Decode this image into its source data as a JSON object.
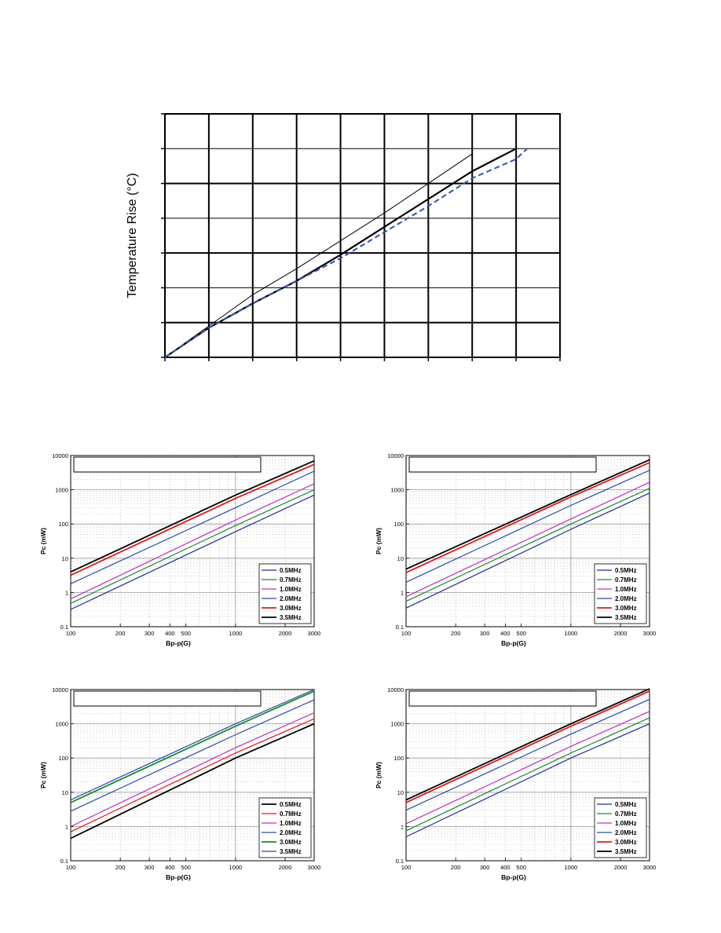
{
  "temperature_chart": {
    "ylabel": "Temperature Rise (°C)"
  },
  "chart_data": [
    {
      "type": "line",
      "title": "",
      "xlabel": "",
      "ylabel": "Temperature Rise (°C)",
      "x_divisions": 9,
      "y_divisions": 7,
      "grid": true,
      "series": [
        {
          "values": [
            [
              0,
              0
            ],
            [
              1,
              0.9
            ],
            [
              2,
              1.8
            ],
            [
              3,
              2.55
            ],
            [
              4,
              3.35
            ],
            [
              5,
              4.15
            ],
            [
              6,
              5.0
            ],
            [
              7,
              5.85
            ]
          ],
          "style": "thin"
        },
        {
          "values": [
            [
              0,
              0
            ],
            [
              1,
              0.85
            ],
            [
              2,
              1.55
            ],
            [
              3,
              2.2
            ],
            [
              4,
              2.95
            ],
            [
              5,
              3.75
            ],
            [
              6,
              4.55
            ],
            [
              7,
              5.35
            ],
            [
              8,
              6.0
            ]
          ],
          "style": "thick"
        },
        {
          "values": [
            [
              0,
              0
            ],
            [
              1,
              0.85
            ],
            [
              2,
              1.55
            ],
            [
              3,
              2.2
            ],
            [
              4,
              2.85
            ],
            [
              5,
              3.6
            ],
            [
              6,
              4.35
            ],
            [
              7,
              5.15
            ],
            [
              8,
              5.7
            ],
            [
              8.25,
              6.0
            ]
          ],
          "style": "dashed"
        }
      ]
    },
    {
      "type": "line",
      "title": "",
      "xlabel": "Bp-p(G)",
      "ylabel": "Pc (mW)",
      "x_scale": "log",
      "y_scale": "log",
      "xlim": [
        100,
        3000
      ],
      "ylim": [
        0.1,
        10000
      ],
      "x_ticks": [
        "100",
        "200",
        "300",
        "400",
        "500",
        "1000",
        "2000",
        "3000"
      ],
      "y_ticks": [
        "0.1",
        "1",
        "10",
        "100",
        "1000",
        "10000"
      ],
      "legend_position": "bottom-right",
      "series": [
        {
          "name": "0.5MHz",
          "values": [
            [
              100,
              0.32
            ],
            [
              1000,
              60
            ],
            [
              3000,
              700
            ]
          ]
        },
        {
          "name": "0.7MHz",
          "values": [
            [
              100,
              0.48
            ],
            [
              1000,
              90
            ],
            [
              3000,
              1000
            ]
          ]
        },
        {
          "name": "1.0MHz",
          "values": [
            [
              100,
              0.65
            ],
            [
              1000,
              130
            ],
            [
              3000,
              1500
            ]
          ]
        },
        {
          "name": "2.0MHz",
          "values": [
            [
              100,
              1.8
            ],
            [
              1000,
              300
            ],
            [
              3000,
              3500
            ]
          ]
        },
        {
          "name": "3.0MHz",
          "values": [
            [
              100,
              3.2
            ],
            [
              1000,
              560
            ],
            [
              3000,
              5500
            ]
          ]
        },
        {
          "name": "3.5MHz",
          "values": [
            [
              100,
              4.0
            ],
            [
              1000,
              700
            ],
            [
              3000,
              7000
            ]
          ]
        }
      ]
    },
    {
      "type": "line",
      "title": "",
      "xlabel": "Bp-p(G)",
      "ylabel": "Pc (mW)",
      "x_scale": "log",
      "y_scale": "log",
      "xlim": [
        100,
        3000
      ],
      "ylim": [
        0.1,
        10000
      ],
      "x_ticks": [
        "100",
        "200",
        "300",
        "400",
        "500",
        "1000",
        "2000",
        "3000"
      ],
      "y_ticks": [
        "0.1",
        "1",
        "10",
        "100",
        "1000",
        "10000"
      ],
      "legend_position": "bottom-right",
      "series": [
        {
          "name": "0.5MHz",
          "values": [
            [
              100,
              0.35
            ],
            [
              1000,
              70
            ],
            [
              3000,
              800
            ]
          ]
        },
        {
          "name": "0.7MHz",
          "values": [
            [
              100,
              0.55
            ],
            [
              1000,
              100
            ],
            [
              3000,
              1100
            ]
          ]
        },
        {
          "name": "1.0MHz",
          "values": [
            [
              100,
              0.75
            ],
            [
              1000,
              140
            ],
            [
              3000,
              1650
            ]
          ]
        },
        {
          "name": "2.0MHz",
          "values": [
            [
              100,
              2.0
            ],
            [
              1000,
              350
            ],
            [
              3000,
              3700
            ]
          ]
        },
        {
          "name": "3.0MHz",
          "values": [
            [
              100,
              3.8
            ],
            [
              1000,
              620
            ],
            [
              3000,
              6200
            ]
          ]
        },
        {
          "name": "3.5MHz",
          "values": [
            [
              100,
              4.8
            ],
            [
              1000,
              720
            ],
            [
              3000,
              7500
            ]
          ]
        }
      ]
    },
    {
      "type": "line",
      "title": "",
      "xlabel": "Bp-p(G)",
      "ylabel": "Pc (mW)",
      "x_scale": "log",
      "y_scale": "log",
      "xlim": [
        100,
        3000
      ],
      "ylim": [
        0.1,
        10000
      ],
      "x_ticks": [
        "100",
        "200",
        "300",
        "400",
        "500",
        "1000",
        "2000",
        "3000"
      ],
      "y_ticks": [
        "0.1",
        "1",
        "10",
        "100",
        "1000",
        "10000"
      ],
      "legend_position": "bottom-right",
      "series": [
        {
          "name": "0.5MHz",
          "values": [
            [
              100,
              0.45
            ],
            [
              1000,
              100
            ],
            [
              3000,
              1000
            ]
          ]
        },
        {
          "name": "0.7MHz",
          "values": [
            [
              100,
              0.7
            ],
            [
              1000,
              140
            ],
            [
              3000,
              1400
            ]
          ]
        },
        {
          "name": "1.0MHz",
          "values": [
            [
              100,
              1.0
            ],
            [
              1000,
              200
            ],
            [
              3000,
              2100
            ]
          ]
        },
        {
          "name": "2.0MHz",
          "values": [
            [
              100,
              2.8
            ],
            [
              1000,
              480
            ],
            [
              3000,
              5000
            ]
          ]
        },
        {
          "name": "3.0MHz",
          "values": [
            [
              100,
              5.0
            ],
            [
              1000,
              850
            ],
            [
              3000,
              9000
            ]
          ]
        },
        {
          "name": "3.5MHz",
          "values": [
            [
              100,
              6.0
            ],
            [
              1000,
              1000
            ],
            [
              3000,
              10000
            ]
          ]
        }
      ]
    },
    {
      "type": "line",
      "title": "",
      "xlabel": "Bp-p(G)",
      "ylabel": "Pc (mW)",
      "x_scale": "log",
      "y_scale": "log",
      "xlim": [
        100,
        3000
      ],
      "ylim": [
        0.1,
        10000
      ],
      "x_ticks": [
        "100",
        "200",
        "300",
        "400",
        "500",
        "1000",
        "2000",
        "3000"
      ],
      "y_ticks": [
        "0.1",
        "1",
        "10",
        "100",
        "1000",
        "10000"
      ],
      "legend_position": "bottom-right",
      "series": [
        {
          "name": "0.5MHz",
          "values": [
            [
              100,
              0.5
            ],
            [
              1000,
              100
            ],
            [
              3000,
              1000
            ]
          ]
        },
        {
          "name": "0.7MHz",
          "values": [
            [
              100,
              0.75
            ],
            [
              1000,
              140
            ],
            [
              3000,
              1500
            ]
          ]
        },
        {
          "name": "1.0MHz",
          "values": [
            [
              100,
              1.2
            ],
            [
              1000,
              220
            ],
            [
              3000,
              2300
            ]
          ]
        },
        {
          "name": "2.0MHz",
          "values": [
            [
              100,
              3.0
            ],
            [
              1000,
              500
            ],
            [
              3000,
              5200
            ]
          ]
        },
        {
          "name": "3.0MHz",
          "values": [
            [
              100,
              5.0
            ],
            [
              1000,
              850
            ],
            [
              3000,
              9000
            ]
          ]
        },
        {
          "name": "3.5MHz",
          "values": [
            [
              100,
              6.0
            ],
            [
              1000,
              1000
            ],
            [
              3000,
              10500
            ]
          ]
        }
      ]
    }
  ],
  "colors": {
    "0.5MHz": "#1f2f8f",
    "0.7MHz": "#1a8a2e",
    "1.0MHz": "#c030c0",
    "2.0MHz": "#2a4aa8",
    "3.0MHz": "#e01818",
    "3.5MHz": "#000000",
    "dashed": "#3355aa"
  },
  "chart3_colors": {
    "0.5MHz": "#000000",
    "0.7MHz": "#e01818",
    "1.0MHz": "#c030c0",
    "2.0MHz": "#2a4aa8",
    "3.0MHz": "#1a8a2e",
    "3.5MHz": "#2a4aa8"
  }
}
